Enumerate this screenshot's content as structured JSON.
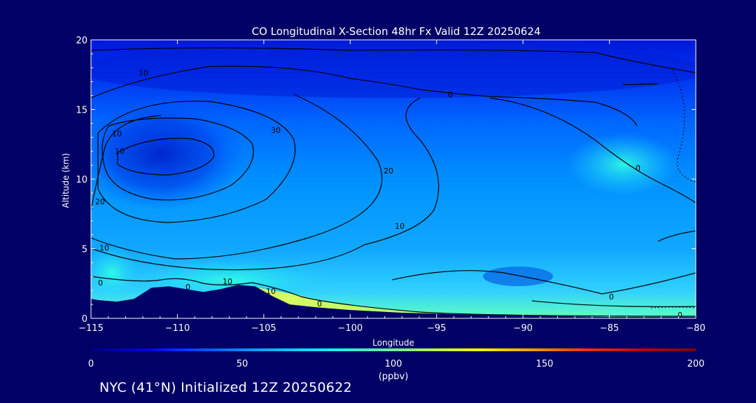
{
  "chart_data": {
    "type": "heatmap",
    "title": "CO Longitudinal X-Section 48hr  Fx Valid 12Z 20250624",
    "xlabel": "Longitude",
    "ylabel": "Altitude (km)",
    "xlim": [
      -115,
      -80
    ],
    "ylim": [
      0,
      20
    ],
    "x_ticks": [
      "−115",
      "−110",
      "−105",
      "−100",
      "−95",
      "−90",
      "−85",
      "−80"
    ],
    "y_ticks": [
      "0",
      "5",
      "10",
      "15",
      "20"
    ],
    "colorbar": {
      "min": 0,
      "max": 200,
      "ticks": [
        "0",
        "50",
        "100",
        "150",
        "200"
      ],
      "unit": "(ppbv)",
      "colors": [
        "#000080",
        "#0000e6",
        "#0050ff",
        "#00a0ff",
        "#00e6ff",
        "#40ffc0",
        "#a0ff60",
        "#ffff00",
        "#ffa000",
        "#ff3000",
        "#c00000",
        "#800000"
      ]
    },
    "contour_labels": [
      "10",
      "30",
      "10",
      "10",
      "20",
      "20",
      "10",
      "10",
      "0",
      "0",
      "10",
      "10",
      "0",
      "0",
      "0",
      "0",
      "0"
    ],
    "terrain": [
      [
        -115,
        1.4
      ],
      [
        -114.5,
        1.3
      ],
      [
        -113.5,
        1.2
      ],
      [
        -112.5,
        1.4
      ],
      [
        -111.5,
        2.2
      ],
      [
        -110.5,
        2.3
      ],
      [
        -109.5,
        2.1
      ],
      [
        -108.5,
        1.9
      ],
      [
        -107.5,
        2.1
      ],
      [
        -106.5,
        2.4
      ],
      [
        -105.5,
        2.3
      ],
      [
        -104.5,
        1.6
      ],
      [
        -103.5,
        1.0
      ],
      [
        -102,
        0.8
      ],
      [
        -100,
        0.6
      ],
      [
        -97,
        0.4
      ],
      [
        -94,
        0.3
      ],
      [
        -90,
        0.2
      ],
      [
        -85,
        0.1
      ],
      [
        -80,
        0.1
      ]
    ]
  },
  "footer": "NYC (41°N) Initialized 12Z 20250622"
}
